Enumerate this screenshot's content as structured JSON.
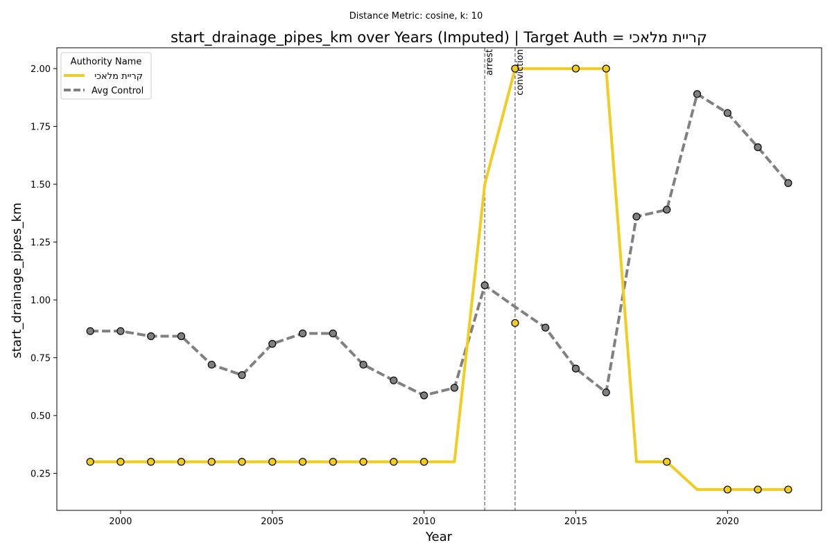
{
  "figure": {
    "suptitle": "Distance Metric: cosine, k: 10",
    "title": "start_drainage_pipes_km over Years (Imputed) | Target Auth = קריית מלאכי"
  },
  "chart_data": {
    "type": "line",
    "title": "start_drainage_pipes_km over Years (Imputed) | Target Auth = קריית מלאכי",
    "xlabel": "Year",
    "ylabel": "start_drainage_pipes_km",
    "xlim": [
      1997.9,
      2023.1
    ],
    "ylim": [
      0.09,
      2.09
    ],
    "xticks": [
      2000,
      2005,
      2010,
      2015,
      2020
    ],
    "yticks": [
      0.25,
      0.5,
      0.75,
      1.0,
      1.25,
      1.5,
      1.75,
      2.0
    ],
    "ytick_labels": [
      "0.25",
      "0.50",
      "0.75",
      "1.00",
      "1.25",
      "1.50",
      "1.75",
      "2.00"
    ],
    "grid": false,
    "legend": {
      "title": "Authority Name",
      "placement": "top-left"
    },
    "x": [
      1999,
      2000,
      2001,
      2002,
      2003,
      2004,
      2005,
      2006,
      2007,
      2008,
      2009,
      2010,
      2011,
      2012,
      2013,
      2014,
      2015,
      2016,
      2017,
      2018,
      2019,
      2020,
      2021,
      2022
    ],
    "series": [
      {
        "name": "קריית מלאכי",
        "color": "#f2cc1f",
        "style": "solid",
        "values": [
          0.3,
          0.3,
          0.3,
          0.3,
          0.3,
          0.3,
          0.3,
          0.3,
          0.3,
          0.3,
          0.3,
          0.3,
          0.3,
          1.5,
          2.0,
          2.0,
          2.0,
          2.0,
          0.3,
          0.3,
          0.18,
          0.18,
          0.18,
          0.18
        ],
        "extra_points": [
          {
            "x": 2013,
            "y": 0.9
          }
        ],
        "marker_years": [
          1999,
          2000,
          2001,
          2002,
          2003,
          2004,
          2005,
          2006,
          2007,
          2008,
          2009,
          2010,
          2013,
          2015,
          2016,
          2018,
          2020,
          2021,
          2022
        ]
      },
      {
        "name": "Avg Control",
        "color": "#808080",
        "style": "dashed",
        "values": [
          0.865,
          0.865,
          0.843,
          0.843,
          0.72,
          0.675,
          0.81,
          0.855,
          0.855,
          0.72,
          0.652,
          0.587,
          0.62,
          1.063,
          0.97,
          0.88,
          0.703,
          0.6,
          1.36,
          1.39,
          1.89,
          1.808,
          1.66,
          1.505
        ],
        "marker_years": [
          1999,
          2000,
          2001,
          2002,
          2003,
          2004,
          2005,
          2006,
          2007,
          2008,
          2009,
          2010,
          2011,
          2012,
          2014,
          2015,
          2016,
          2017,
          2018,
          2019,
          2020,
          2021,
          2022
        ]
      }
    ],
    "events": [
      {
        "x": 2012,
        "label": "arrest"
      },
      {
        "x": 2013,
        "label": "conviction"
      }
    ]
  }
}
